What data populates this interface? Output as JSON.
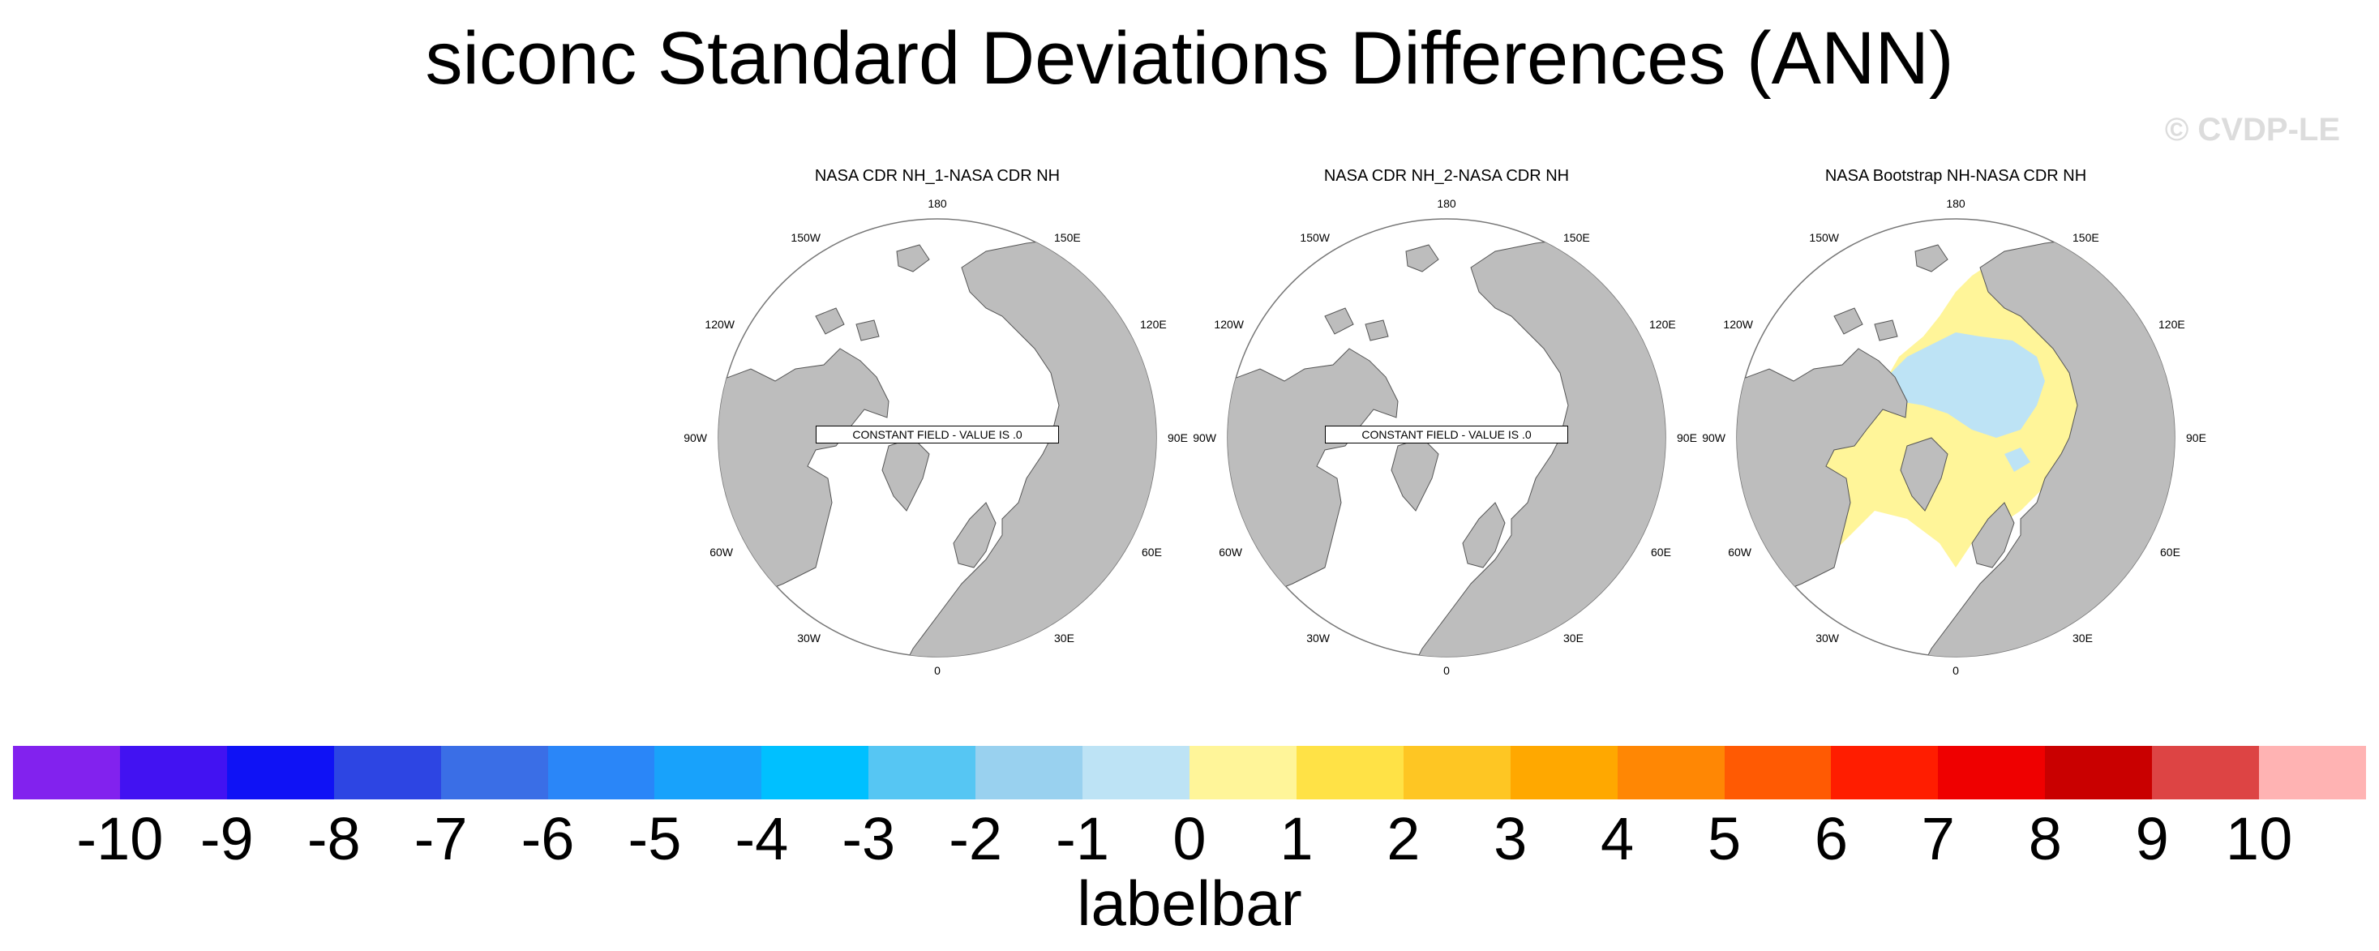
{
  "title": "siconc Standard Deviations Differences (ANN)",
  "watermark": "© CVDP-LE",
  "longitude_labels": {
    "l180": "180",
    "l150e": "150E",
    "l120e": "120E",
    "l90e": "90E",
    "l60e": "60E",
    "l30e": "30E",
    "l0": "0",
    "l30w": "30W",
    "l60w": "60W",
    "l90w": "90W",
    "l120w": "120W",
    "l150w": "150W"
  },
  "panels": [
    {
      "title": "NASA CDR NH_1-NASA CDR NH",
      "note": "CONSTANT FIELD - VALUE IS .0"
    },
    {
      "title": "NASA CDR NH_2-NASA CDR NH",
      "note": "CONSTANT FIELD - VALUE IS .0"
    },
    {
      "title": "NASA Bootstrap NH-NASA CDR NH"
    }
  ],
  "colorbar": {
    "label": "labelbar",
    "ticks": [
      "-10",
      "-9",
      "-8",
      "-7",
      "-6",
      "-5",
      "-4",
      "-3",
      "-2",
      "-1",
      "0",
      "1",
      "2",
      "3",
      "4",
      "5",
      "6",
      "7",
      "8",
      "9",
      "10"
    ],
    "colors": [
      "#8222ee",
      "#4212f2",
      "#0f12f5",
      "#2d45e3",
      "#3a6ee6",
      "#2a86f8",
      "#18a2fb",
      "#00c0ff",
      "#56c6f3",
      "#99d1ef",
      "#bde3f5",
      "#fff599",
      "#ffe246",
      "#fec623",
      "#ffa800",
      "#ff8704",
      "#ff5a03",
      "#ff1d00",
      "#ef0000",
      "#c90000",
      "#dd4444",
      "#ffb3b3"
    ]
  },
  "colors": {
    "land": "#bdbdbd",
    "ocean": "#ffffff",
    "positive_small": "#fff599",
    "negative_small": "#bde3f5"
  }
}
